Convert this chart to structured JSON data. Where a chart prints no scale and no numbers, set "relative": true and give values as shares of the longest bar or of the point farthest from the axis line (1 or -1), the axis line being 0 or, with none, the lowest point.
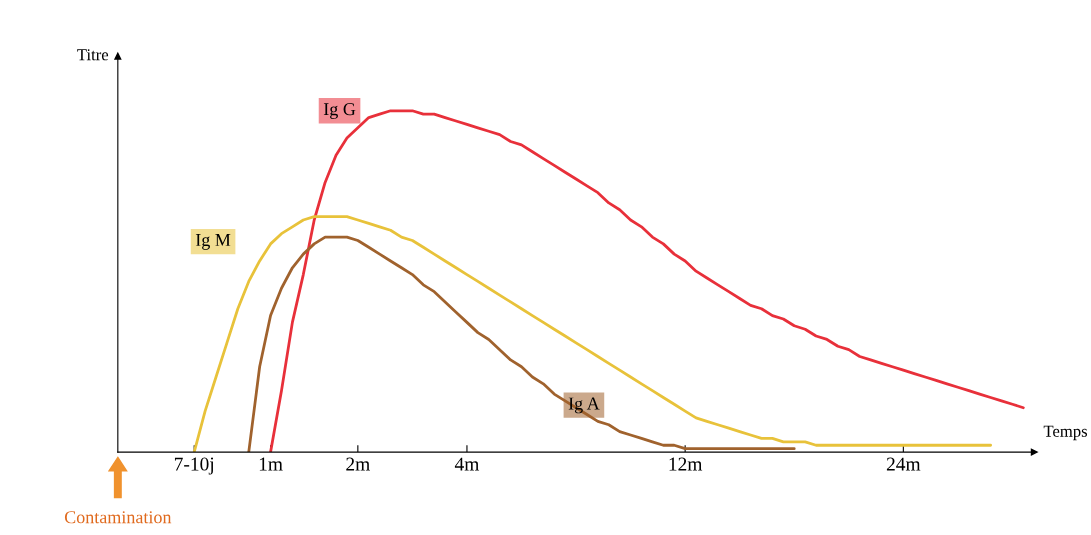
{
  "chart_data": {
    "type": "line",
    "relative": true,
    "xlabel": "Temps",
    "ylabel": "Titre",
    "categories": [
      null,
      null,
      null,
      null,
      null,
      null,
      null,
      "7-10j",
      null,
      null,
      null,
      null,
      null,
      null,
      "1m",
      null,
      null,
      null,
      null,
      null,
      null,
      null,
      "2m",
      null,
      null,
      null,
      null,
      null,
      null,
      null,
      null,
      null,
      "4m",
      null,
      null,
      null,
      null,
      null,
      null,
      null,
      null,
      null,
      null,
      null,
      null,
      null,
      null,
      null,
      null,
      null,
      null,
      null,
      "12m",
      null,
      null,
      null,
      null,
      null,
      null,
      null,
      null,
      null,
      null,
      null,
      null,
      null,
      null,
      null,
      null,
      null,
      null,
      null,
      "24m",
      null,
      null,
      null,
      null,
      null,
      null,
      null,
      null,
      null,
      null,
      null,
      null
    ],
    "series": [
      {
        "name": "Ig G",
        "color": "#e8303a",
        "values": [
          null,
          null,
          null,
          null,
          null,
          null,
          null,
          null,
          null,
          null,
          null,
          null,
          null,
          null,
          0,
          0.18,
          0.38,
          0.52,
          0.68,
          0.79,
          0.87,
          0.92,
          0.95,
          0.98,
          0.99,
          1.0,
          1.0,
          1.0,
          0.99,
          0.99,
          0.98,
          0.97,
          0.96,
          0.95,
          0.94,
          0.93,
          0.91,
          0.9,
          0.88,
          0.86,
          0.84,
          0.82,
          0.8,
          0.78,
          0.76,
          0.73,
          0.71,
          0.68,
          0.66,
          0.63,
          0.61,
          0.58,
          0.56,
          0.53,
          0.51,
          0.49,
          0.47,
          0.45,
          0.43,
          0.42,
          0.4,
          0.39,
          0.37,
          0.36,
          0.34,
          0.33,
          0.31,
          0.3,
          0.28,
          0.27,
          0.26,
          0.25,
          0.24,
          0.23,
          0.22,
          0.21,
          0.2,
          0.19,
          0.18,
          0.17,
          0.16,
          0.15,
          0.14,
          0.13,
          null
        ]
      },
      {
        "name": "Ig M",
        "color": "#e8c23a",
        "values": [
          null,
          null,
          null,
          null,
          null,
          null,
          null,
          0,
          0.12,
          0.22,
          0.32,
          0.42,
          0.5,
          0.56,
          0.61,
          0.64,
          0.66,
          0.68,
          0.69,
          0.69,
          0.69,
          0.69,
          0.68,
          0.67,
          0.66,
          0.65,
          0.63,
          0.62,
          0.6,
          0.58,
          0.56,
          0.54,
          0.52,
          0.5,
          0.48,
          0.46,
          0.44,
          0.42,
          0.4,
          0.38,
          0.36,
          0.34,
          0.32,
          0.3,
          0.28,
          0.26,
          0.24,
          0.22,
          0.2,
          0.18,
          0.16,
          0.14,
          0.12,
          0.1,
          0.09,
          0.08,
          0.07,
          0.06,
          0.05,
          0.04,
          0.04,
          0.03,
          0.03,
          0.03,
          0.02,
          0.02,
          0.02,
          0.02,
          0.02,
          0.02,
          0.02,
          0.02,
          0.02,
          0.02,
          0.02,
          0.02,
          0.02,
          0.02,
          0.02,
          0.02,
          0.02,
          null,
          null,
          null,
          null
        ]
      },
      {
        "name": "Ig A",
        "color": "#a0622d",
        "values": [
          null,
          null,
          null,
          null,
          null,
          null,
          null,
          null,
          null,
          null,
          null,
          null,
          0,
          0.25,
          0.4,
          0.48,
          0.54,
          0.58,
          0.61,
          0.63,
          0.63,
          0.63,
          0.62,
          0.6,
          0.58,
          0.56,
          0.54,
          0.52,
          0.49,
          0.47,
          0.44,
          0.41,
          0.38,
          0.35,
          0.33,
          0.3,
          0.27,
          0.25,
          0.22,
          0.2,
          0.17,
          0.15,
          0.13,
          0.11,
          0.09,
          0.08,
          0.06,
          0.05,
          0.04,
          0.03,
          0.02,
          0.02,
          0.01,
          0.01,
          0.01,
          0.01,
          0.01,
          0.01,
          0.01,
          0.01,
          0.01,
          0.01,
          0.01,
          null,
          null,
          null,
          null,
          null,
          null,
          null,
          null,
          null,
          null,
          null,
          null,
          null,
          null,
          null,
          null,
          null,
          null,
          null,
          null,
          null,
          null
        ]
      }
    ],
    "annotations": [
      "Contamination"
    ],
    "marker": "none",
    "line_style": "solid"
  }
}
